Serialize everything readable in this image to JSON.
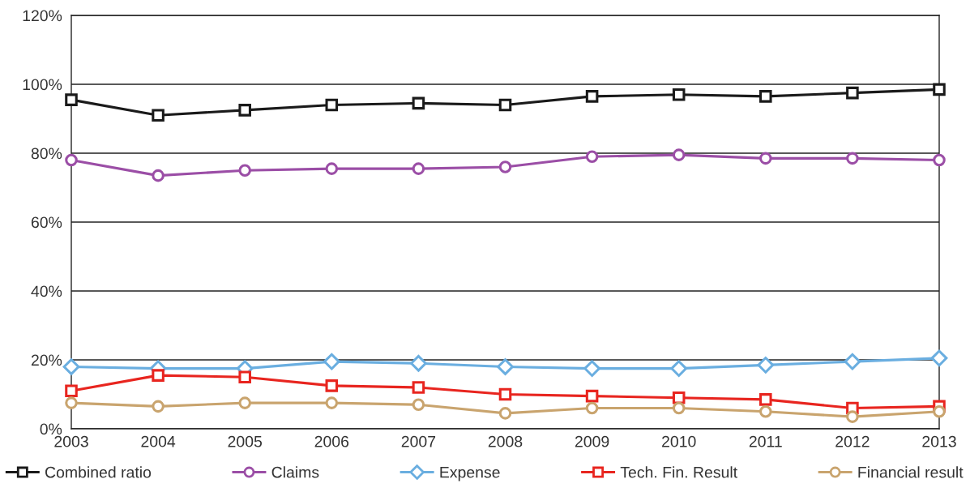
{
  "chart_data": {
    "type": "line",
    "x": [
      2003,
      2004,
      2005,
      2006,
      2007,
      2008,
      2009,
      2010,
      2011,
      2012,
      2013
    ],
    "series": [
      {
        "name": "Combined ratio",
        "color": "#1a1a1a",
        "marker": "square",
        "values": [
          95.5,
          91,
          92.5,
          94,
          94.5,
          94,
          96.5,
          97,
          96.5,
          97.5,
          98.5
        ]
      },
      {
        "name": "Claims",
        "color": "#9b4ea6",
        "marker": "circle",
        "values": [
          78,
          73.5,
          75,
          75.5,
          75.5,
          76,
          79,
          79.5,
          78.5,
          78.5,
          78
        ]
      },
      {
        "name": "Expense",
        "color": "#6aaee0",
        "marker": "diamond",
        "values": [
          18,
          17.5,
          17.5,
          19.5,
          19,
          18,
          17.5,
          17.5,
          18.5,
          19.5,
          20.5
        ]
      },
      {
        "name": "Tech. Fin. Result",
        "color": "#e8251f",
        "marker": "square",
        "values": [
          11,
          15.5,
          15,
          12.5,
          12,
          10,
          9.5,
          9,
          8.5,
          6,
          6.5
        ]
      },
      {
        "name": "Financial result",
        "color": "#c9a46e",
        "marker": "circle",
        "values": [
          7.5,
          6.5,
          7.5,
          7.5,
          7,
          4.5,
          6,
          6,
          5,
          3.5,
          5
        ]
      }
    ],
    "xlim": [
      2003,
      2013
    ],
    "xticks": [
      2003,
      2004,
      2005,
      2006,
      2007,
      2008,
      2009,
      2010,
      2011,
      2012,
      2013
    ],
    "ylim": [
      0,
      120
    ],
    "yticks": [
      {
        "value": 0,
        "label": "0%"
      },
      {
        "value": 20,
        "label": "20%"
      },
      {
        "value": 40,
        "label": "40%"
      },
      {
        "value": 60,
        "label": "60%"
      },
      {
        "value": 80,
        "label": "80%"
      },
      {
        "value": 100,
        "label": "100%"
      },
      {
        "value": 120,
        "label": "120%"
      }
    ],
    "grid": "y",
    "legend": "bottom",
    "line_style": "solid"
  }
}
